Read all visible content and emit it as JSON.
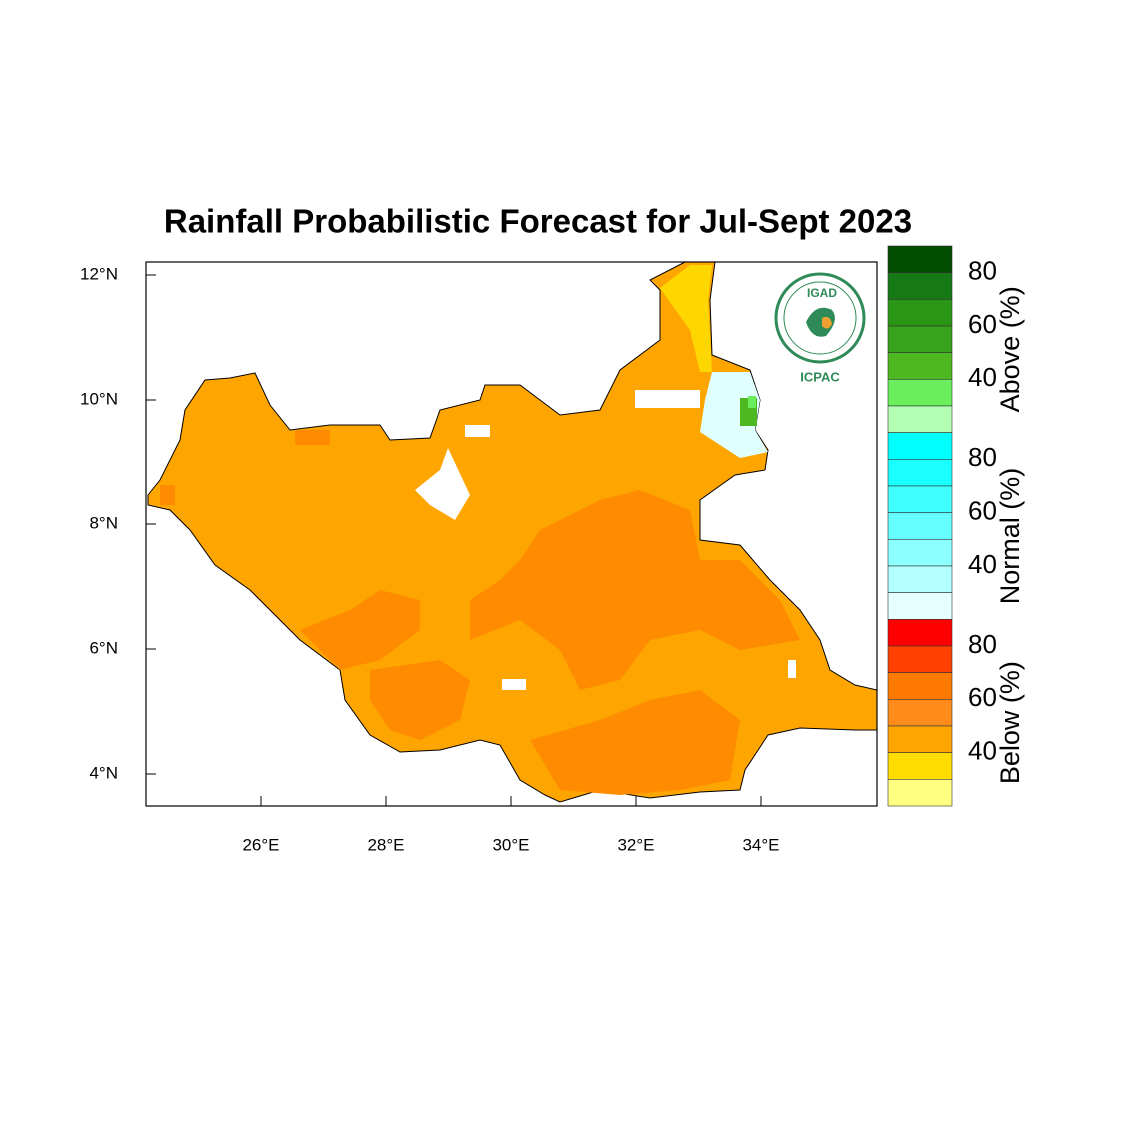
{
  "title": "Rainfall Probabilistic Forecast for Jul-Sept 2023",
  "map": {
    "x_ticks": [
      "26°E",
      "28°E",
      "30°E",
      "32°E",
      "34°E"
    ],
    "y_ticks": [
      "12°N",
      "10°N",
      "8°N",
      "6°N",
      "4°N"
    ]
  },
  "logo": {
    "top": "IGAD",
    "bottom": "ICPAC"
  },
  "legend": {
    "groups": [
      {
        "title": "Above (%)",
        "labels": [
          "80",
          "60",
          "40"
        ],
        "colors": [
          "#004d00",
          "#157a15",
          "#2a9616",
          "#37a31c",
          "#4db81f",
          "#6aee5c",
          "#b5ffb5"
        ]
      },
      {
        "title": "Normal (%)",
        "labels": [
          "80",
          "60",
          "40"
        ],
        "colors": [
          "#00ffff",
          "#1affff",
          "#40ffff",
          "#66ffff",
          "#8cffff",
          "#b3ffff",
          "#e6ffff"
        ]
      },
      {
        "title": "Below (%)",
        "labels": [
          "80",
          "60",
          "40"
        ],
        "colors": [
          "#ff0000",
          "#ff4000",
          "#ff7a00",
          "#ff8c1a",
          "#ffa500",
          "#ffdd00",
          "#ffff80"
        ]
      }
    ]
  }
}
